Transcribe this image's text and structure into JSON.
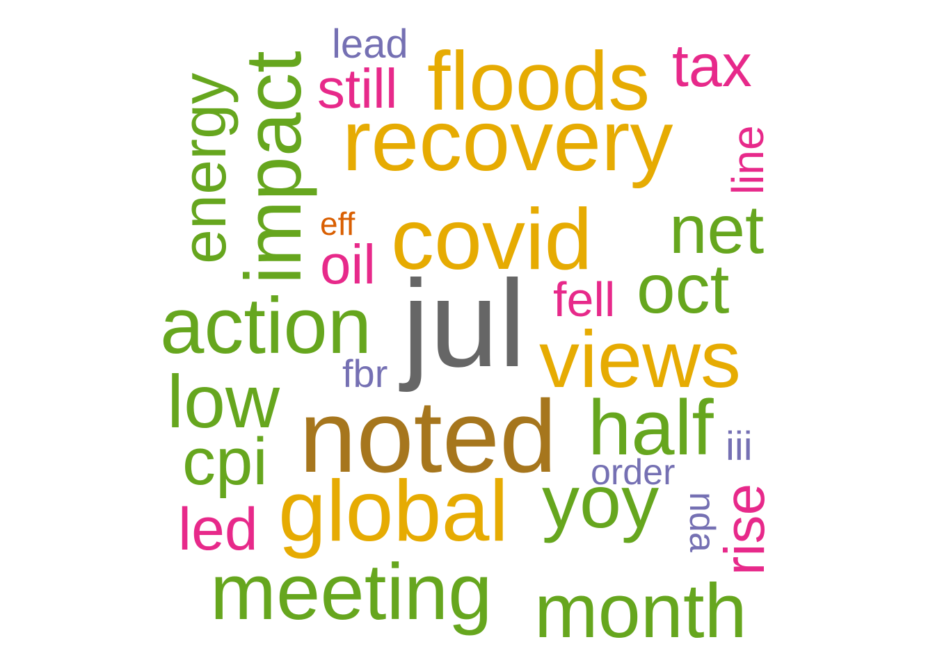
{
  "colors": {
    "gray": "#666666",
    "brown": "#A6761D",
    "gold": "#E6AB02",
    "green": "#66A61E",
    "pink": "#E7298A",
    "purple": "#7570B3",
    "orange": "#D95F02"
  },
  "words": [
    {
      "id": "jul",
      "text": "jul",
      "color": "gray"
    },
    {
      "id": "noted",
      "text": "noted",
      "color": "brown"
    },
    {
      "id": "covid",
      "text": "covid",
      "color": "gold"
    },
    {
      "id": "recovery",
      "text": "recovery",
      "color": "gold"
    },
    {
      "id": "floods",
      "text": "floods",
      "color": "gold"
    },
    {
      "id": "global",
      "text": "global",
      "color": "gold"
    },
    {
      "id": "views",
      "text": "views",
      "color": "gold"
    },
    {
      "id": "action",
      "text": "action",
      "color": "green"
    },
    {
      "id": "meeting",
      "text": "meeting",
      "color": "green"
    },
    {
      "id": "month",
      "text": "month",
      "color": "green"
    },
    {
      "id": "half",
      "text": "half",
      "color": "green"
    },
    {
      "id": "yoy",
      "text": "yoy",
      "color": "green"
    },
    {
      "id": "low",
      "text": "low",
      "color": "green"
    },
    {
      "id": "impact",
      "text": "impact",
      "color": "green"
    },
    {
      "id": "energy",
      "text": "energy",
      "color": "green"
    },
    {
      "id": "oct",
      "text": "oct",
      "color": "green"
    },
    {
      "id": "net",
      "text": "net",
      "color": "green"
    },
    {
      "id": "cpi",
      "text": "cpi",
      "color": "green"
    },
    {
      "id": "still",
      "text": "still",
      "color": "pink"
    },
    {
      "id": "tax",
      "text": "tax",
      "color": "pink"
    },
    {
      "id": "oil",
      "text": "oil",
      "color": "pink"
    },
    {
      "id": "led",
      "text": "led",
      "color": "pink"
    },
    {
      "id": "rise",
      "text": "rise",
      "color": "pink"
    },
    {
      "id": "line",
      "text": "line",
      "color": "pink"
    },
    {
      "id": "fell",
      "text": "fell",
      "color": "pink"
    },
    {
      "id": "lead",
      "text": "lead",
      "color": "purple"
    },
    {
      "id": "fbr",
      "text": "fbr",
      "color": "purple"
    },
    {
      "id": "order",
      "text": "order",
      "color": "purple"
    },
    {
      "id": "iii",
      "text": "iii",
      "color": "purple"
    },
    {
      "id": "nda",
      "text": "nda",
      "color": "purple"
    },
    {
      "id": "eff",
      "text": "eff",
      "color": "orange"
    }
  ]
}
